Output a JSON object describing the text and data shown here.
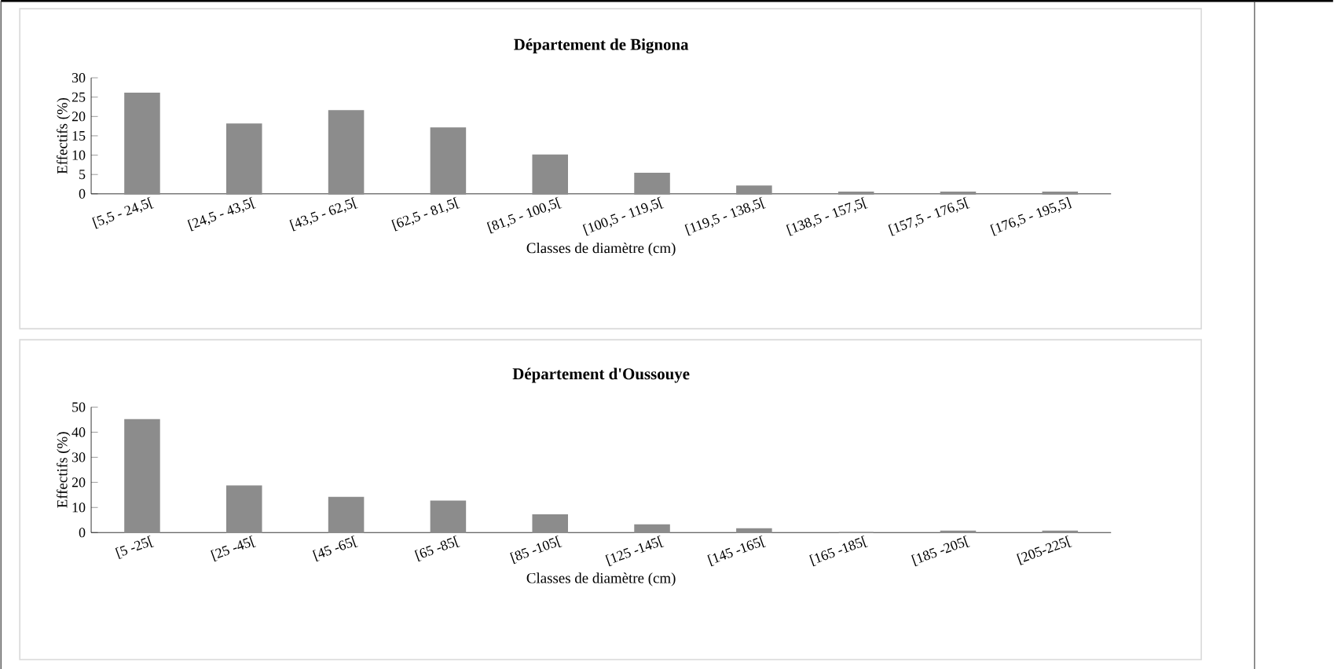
{
  "chart_data": [
    {
      "type": "bar",
      "title": "Département de Bignona",
      "xlabel": "Classes de diamètre (cm)",
      "ylabel": "Effectifs (%)",
      "categories": [
        "[5,5 - 24,5[",
        "[24,5 - 43,5[",
        "[43,5 - 62,5[",
        "[62,5 - 81,5[",
        "[81,5 - 100,5[",
        "[100,5 - 119,5[",
        "[119,5 - 138,5[",
        "[138,5 - 157,5[",
        "[157,5 - 176,5[",
        "[176,5 - 195,5]"
      ],
      "values": [
        26,
        18,
        21.5,
        17,
        10,
        5.3,
        2,
        0.4,
        0.4,
        0.4
      ],
      "color": "#8c8c8c",
      "ylim": [
        0,
        30
      ],
      "yticks": [
        0,
        5,
        10,
        15,
        20,
        25,
        30
      ]
    },
    {
      "type": "bar",
      "title": "Département d'Oussouye",
      "xlabel": "Classes de diamètre (cm)",
      "ylabel": "Effectifs (%)",
      "categories": [
        "[5 -25[",
        "[25 -45[",
        "[45 -65[",
        "[65 -85[",
        "[85 -105[",
        "[125 -145[",
        "[145 -165[",
        "[165 -185[",
        "[185 -205[",
        "[205-225["
      ],
      "values": [
        45,
        18.5,
        14,
        12.5,
        7,
        3,
        1.5,
        0,
        0.5,
        0.5
      ],
      "color": "#8c8c8c",
      "ylim": [
        0,
        50
      ],
      "yticks": [
        0,
        10,
        20,
        30,
        40,
        50
      ]
    }
  ]
}
